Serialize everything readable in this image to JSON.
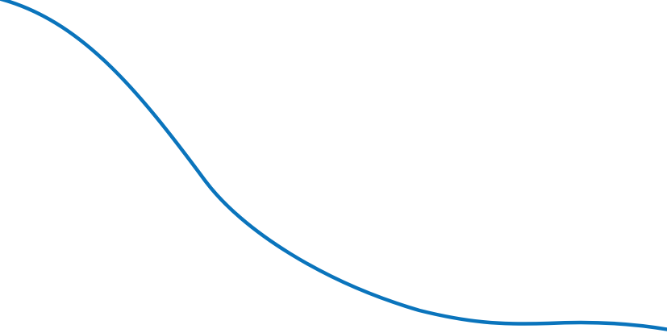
{
  "colors": {
    "background": "#ffffff",
    "curve": "#0a74bc"
  }
}
